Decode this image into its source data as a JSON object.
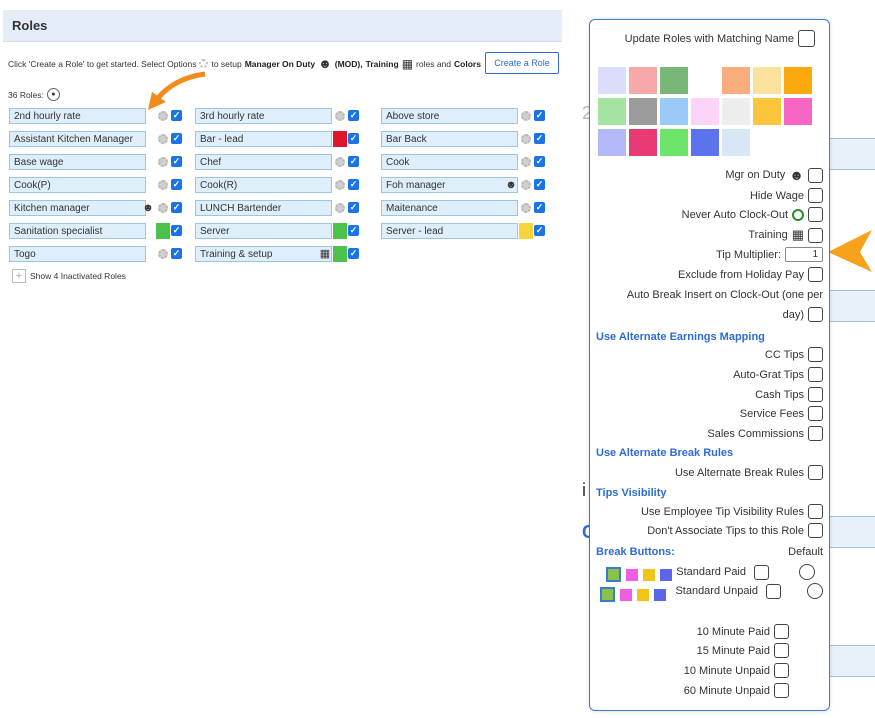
{
  "header": {
    "title": "Roles"
  },
  "intro": {
    "part1": "Click 'Create a Role' to get started. Select Options",
    "part2": "to setup",
    "mod_label": "Manager On Duty",
    "mod_abbr": "(MOD),",
    "training_label": "Training",
    "part3": "roles and",
    "colors_label": "Colors"
  },
  "create_button": "Create a Role",
  "roles_count": "36 Roles:",
  "roles": [
    {
      "name": "2nd hourly rate"
    },
    {
      "name": "Assistant Kitchen Manager"
    },
    {
      "name": "Base wage"
    },
    {
      "name": "Cook(P)"
    },
    {
      "name": "Kitchen manager"
    },
    {
      "name": "Sanitation specialist"
    },
    {
      "name": "Togo"
    },
    {
      "name": "3rd hourly rate"
    },
    {
      "name": "Bar - lead"
    },
    {
      "name": "Chef"
    },
    {
      "name": "Cook(R)"
    },
    {
      "name": "LUNCH Bartender"
    },
    {
      "name": "Server"
    },
    {
      "name": "Training & setup"
    },
    {
      "name": "Above store"
    },
    {
      "name": "Bar Back"
    },
    {
      "name": "Cook"
    },
    {
      "name": "Foh manager"
    },
    {
      "name": "Maitenance"
    },
    {
      "name": "Server - lead"
    }
  ],
  "show_inactivated": "Show 4 Inactivated Roles",
  "panel": {
    "update_label": "Update Roles with Matching Name",
    "colors": [
      "#dcdcfb",
      "#f7a8a8",
      "#79b779",
      "#ffffff",
      "#f8ad7e",
      "#fbe29c",
      "#fca80f",
      "#a7e3a0",
      "#9b9b9b",
      "#9ccaf8",
      "#fbd4f8",
      "#ededed",
      "#fcc63c",
      "#f665c2",
      "#b3b9f8",
      "#e93b73",
      "#6de56a",
      "#5c73ee",
      "#d7e7f6"
    ],
    "mgr_on_duty": "Mgr on Duty",
    "hide_wage": "Hide Wage",
    "never_auto_clockout": "Never Auto Clock-Out",
    "training": "Training",
    "tip_multiplier": "Tip Multiplier:",
    "tip_multiplier_value": "1",
    "exclude_holiday": "Exclude from Holiday Pay",
    "auto_break_line1": "Auto Break Insert on Clock-Out (one per",
    "auto_break_line2": "day)",
    "alt_earnings_heading": "Use Alternate Earnings Mapping",
    "cc_tips": "CC Tips",
    "auto_grat_tips": "Auto-Grat Tips",
    "cash_tips": "Cash Tips",
    "service_fees": "Service Fees",
    "sales_commissions": "Sales Commissions",
    "alt_break_heading": "Use Alternate Break Rules",
    "use_alt_break": "Use Alternate Break Rules",
    "tips_visibility_heading": "Tips Visibility",
    "use_emp_tip_vis": "Use Employee Tip Visibility Rules",
    "dont_associate": "Don't Associate Tips to this Role",
    "break_buttons_heading": "Break Buttons:",
    "default_label": "Default",
    "standard_paid": "Standard Paid",
    "standard_unpaid": "Standard Unpaid",
    "min10_paid": "10 Minute Paid",
    "min15_paid": "15 Minute Paid",
    "min10_unpaid": "10 Minute Unpaid",
    "min60_unpaid": "60 Minute Unpaid"
  }
}
